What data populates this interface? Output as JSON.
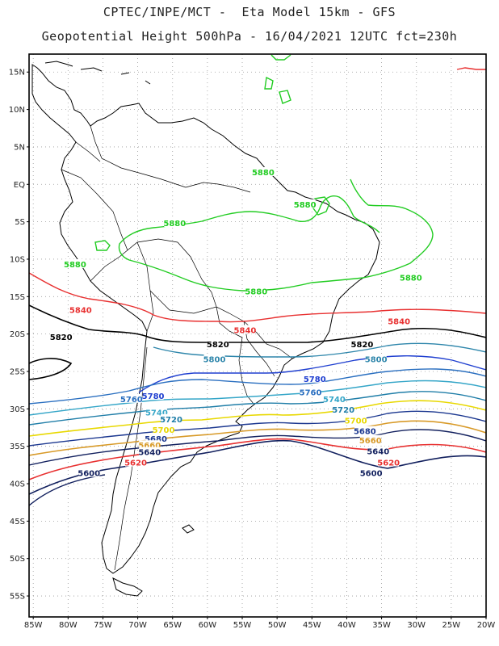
{
  "header": {
    "line1": "CPTEC/INPE/MCT -  Eta Model 15km - GFS",
    "line2": "Geopotential Height 500hPa - 16/04/2021 12UTC fct=230h"
  },
  "axes": {
    "lat_labels": [
      "15N",
      "10N",
      "5N",
      "EQ",
      "5S",
      "10S",
      "15S",
      "20S",
      "25S",
      "30S",
      "35S",
      "40S",
      "45S",
      "50S",
      "55S"
    ],
    "lat_values": [
      15,
      10,
      5,
      0,
      -5,
      -10,
      -15,
      -20,
      -25,
      -30,
      -35,
      -40,
      -45,
      -50,
      -55
    ],
    "lon_labels": [
      "85W",
      "80W",
      "75W",
      "70W",
      "65W",
      "60W",
      "55W",
      "50W",
      "45W",
      "40W",
      "35W",
      "30W",
      "25W",
      "20W"
    ],
    "lon_values": [
      -85,
      -80,
      -75,
      -70,
      -65,
      -60,
      -55,
      -50,
      -45,
      -40,
      -35,
      -30,
      -25,
      -20
    ],
    "lat_range": [
      -57.8,
      17.4
    ],
    "lon_range": [
      -85.6,
      -20.0
    ],
    "gridlines": true
  },
  "contours": [
    {
      "level": 5880,
      "color": "#22cc22",
      "labels": [
        {
          "text": "5880",
          "lon": -52.0,
          "lat": 1.6
        },
        {
          "text": "5880",
          "lon": -46.0,
          "lat": -2.7
        },
        {
          "text": "5880",
          "lon": -64.7,
          "lat": -5.2
        },
        {
          "text": "5880",
          "lon": -79.0,
          "lat": -10.7
        },
        {
          "text": "5880",
          "lon": -53.0,
          "lat": -14.3
        },
        {
          "text": "5880",
          "lon": -30.8,
          "lat": -12.5
        }
      ]
    },
    {
      "level": 5840,
      "color": "#e83030",
      "labels": [
        {
          "text": "5840",
          "lon": -78.2,
          "lat": -16.8
        },
        {
          "text": "5840",
          "lon": -54.6,
          "lat": -19.5
        },
        {
          "text": "5840",
          "lon": -32.5,
          "lat": -18.3
        }
      ]
    },
    {
      "level": 5820,
      "color": "#000000",
      "labels": [
        {
          "text": "5820",
          "lon": -81.0,
          "lat": -20.4
        },
        {
          "text": "5820",
          "lon": -58.5,
          "lat": -21.4
        },
        {
          "text": "5820",
          "lon": -37.8,
          "lat": -21.4
        }
      ]
    },
    {
      "level": 5800,
      "color": "#2e86ab",
      "labels": [
        {
          "text": "5800",
          "lon": -59.0,
          "lat": -23.4
        },
        {
          "text": "5800",
          "lon": -35.8,
          "lat": -23.4
        }
      ]
    },
    {
      "level": 5780,
      "color": "#1f3fd0",
      "labels": [
        {
          "text": "5780",
          "lon": -67.8,
          "lat": -28.3
        },
        {
          "text": "5780",
          "lon": -44.6,
          "lat": -26.0
        }
      ]
    },
    {
      "level": 5760,
      "color": "#2a6fc0",
      "labels": [
        {
          "text": "5760",
          "lon": -70.9,
          "lat": -28.7
        },
        {
          "text": "5760",
          "lon": -45.2,
          "lat": -27.8
        }
      ]
    },
    {
      "level": 5740,
      "color": "#35a6c8",
      "labels": [
        {
          "text": "5740",
          "lon": -67.3,
          "lat": -30.5
        },
        {
          "text": "5740",
          "lon": -41.8,
          "lat": -28.7
        }
      ]
    },
    {
      "level": 5720,
      "color": "#207ea8",
      "labels": [
        {
          "text": "5720",
          "lon": -65.2,
          "lat": -31.4
        },
        {
          "text": "5720",
          "lon": -40.5,
          "lat": -30.1
        }
      ]
    },
    {
      "level": 5700,
      "color": "#e8d800",
      "labels": [
        {
          "text": "5700",
          "lon": -66.3,
          "lat": -32.8
        },
        {
          "text": "5700",
          "lon": -38.7,
          "lat": -31.6
        }
      ]
    },
    {
      "level": 5680,
      "color": "#1c3890",
      "labels": [
        {
          "text": "5680",
          "lon": -67.4,
          "lat": -34.0
        },
        {
          "text": "5680",
          "lon": -37.4,
          "lat": -33.0
        }
      ]
    },
    {
      "level": 5660,
      "color": "#d89a28",
      "labels": [
        {
          "text": "5660",
          "lon": -68.3,
          "lat": -34.9
        },
        {
          "text": "5660",
          "lon": -36.6,
          "lat": -34.2
        }
      ]
    },
    {
      "level": 5640,
      "color": "#12205e",
      "labels": [
        {
          "text": "5640",
          "lon": -68.3,
          "lat": -35.8
        },
        {
          "text": "5640",
          "lon": -35.5,
          "lat": -35.7
        }
      ]
    },
    {
      "level": 5620,
      "color": "#e83030",
      "labels": [
        {
          "text": "5620",
          "lon": -70.3,
          "lat": -37.2
        },
        {
          "text": "5620",
          "lon": -34.0,
          "lat": -37.2
        }
      ]
    },
    {
      "level": 5600,
      "color": "#12205e",
      "labels": [
        {
          "text": "5600",
          "lon": -77.0,
          "lat": -38.6
        },
        {
          "text": "5600",
          "lon": -36.5,
          "lat": -38.6
        }
      ]
    }
  ]
}
